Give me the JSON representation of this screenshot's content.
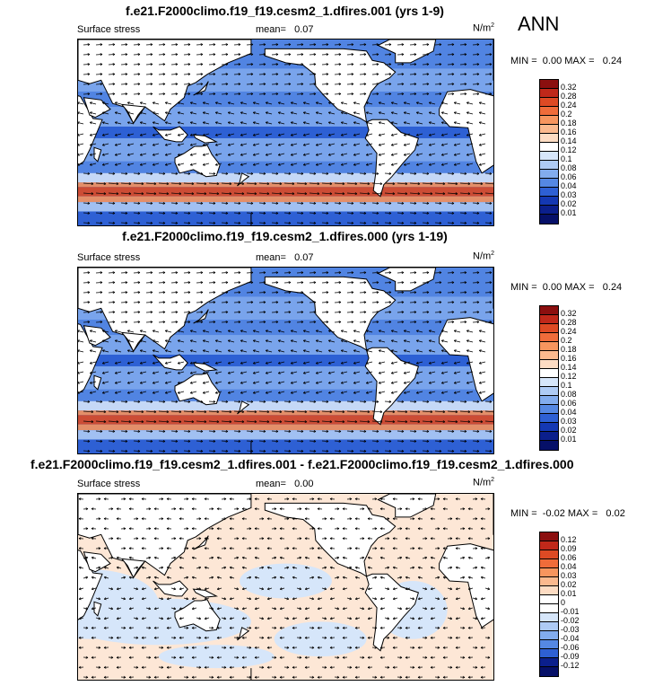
{
  "season": "ANN",
  "panels": [
    {
      "title": "f.e21.F2000climo.f19_f19.cesm2_1.dfires.001 (yrs 1-9)",
      "variable": "Surface stress",
      "mean_label": "mean=",
      "mean_value": "0.07",
      "units": "N/m",
      "units_exp": "2",
      "min_label": "MIN =",
      "min_value": "0.00",
      "max_label": "MAX =",
      "max_value": "0.24",
      "colorbar": {
        "labels": [
          "0.32",
          "0.28",
          "0.24",
          "0.2",
          "0.18",
          "0.16",
          "0.14",
          "0.12",
          "0.1",
          "0.08",
          "0.06",
          "0.04",
          "0.03",
          "0.02",
          "0.01"
        ],
        "colors": [
          "#8b0f0f",
          "#c0281a",
          "#de4a24",
          "#f06c3a",
          "#f7955e",
          "#fbb98e",
          "#fddcc3",
          "#ffffff",
          "#d6e6fa",
          "#aecbf5",
          "#82acee",
          "#5588e3",
          "#2e60d4",
          "#1438b3",
          "#0b1f8c",
          "#061068"
        ]
      },
      "field_kind": "magnitude"
    },
    {
      "title": "f.e21.F2000climo.f19_f19.cesm2_1.dfires.000 (yrs 1-19)",
      "variable": "Surface stress",
      "mean_label": "mean=",
      "mean_value": "0.07",
      "units": "N/m",
      "units_exp": "2",
      "min_label": "MIN =",
      "min_value": "0.00",
      "max_label": "MAX =",
      "max_value": "0.24",
      "colorbar": {
        "labels": [
          "0.32",
          "0.28",
          "0.24",
          "0.2",
          "0.18",
          "0.16",
          "0.14",
          "0.12",
          "0.1",
          "0.08",
          "0.06",
          "0.04",
          "0.03",
          "0.02",
          "0.01"
        ],
        "colors": [
          "#8b0f0f",
          "#c0281a",
          "#de4a24",
          "#f06c3a",
          "#f7955e",
          "#fbb98e",
          "#fddcc3",
          "#ffffff",
          "#d6e6fa",
          "#aecbf5",
          "#82acee",
          "#5588e3",
          "#2e60d4",
          "#1438b3",
          "#0b1f8c",
          "#061068"
        ]
      },
      "field_kind": "magnitude"
    },
    {
      "title": "f.e21.F2000climo.f19_f19.cesm2_1.dfires.001 - f.e21.F2000climo.f19_f19.cesm2_1.dfires.000",
      "variable": "Surface stress",
      "mean_label": "mean=",
      "mean_value": "0.00",
      "units": "N/m",
      "units_exp": "2",
      "min_label": "MIN =",
      "min_value": "-0.02",
      "max_label": "MAX =",
      "max_value": "0.02",
      "colorbar": {
        "labels": [
          "0.12",
          "0.09",
          "0.06",
          "0.04",
          "0.03",
          "0.02",
          "0.01",
          "0",
          "-0.01",
          "-0.02",
          "-0.03",
          "-0.04",
          "-0.06",
          "-0.09",
          "-0.12"
        ],
        "colors": [
          "#8b0f0f",
          "#c0281a",
          "#de4a24",
          "#f06c3a",
          "#f7955e",
          "#fbb98e",
          "#fddcc3",
          "#ffffff",
          "#ffffff",
          "#d6e6fa",
          "#aecbf5",
          "#82acee",
          "#5588e3",
          "#2e60d4",
          "#0b1f8c",
          "#061068"
        ]
      },
      "field_kind": "difference"
    }
  ]
}
